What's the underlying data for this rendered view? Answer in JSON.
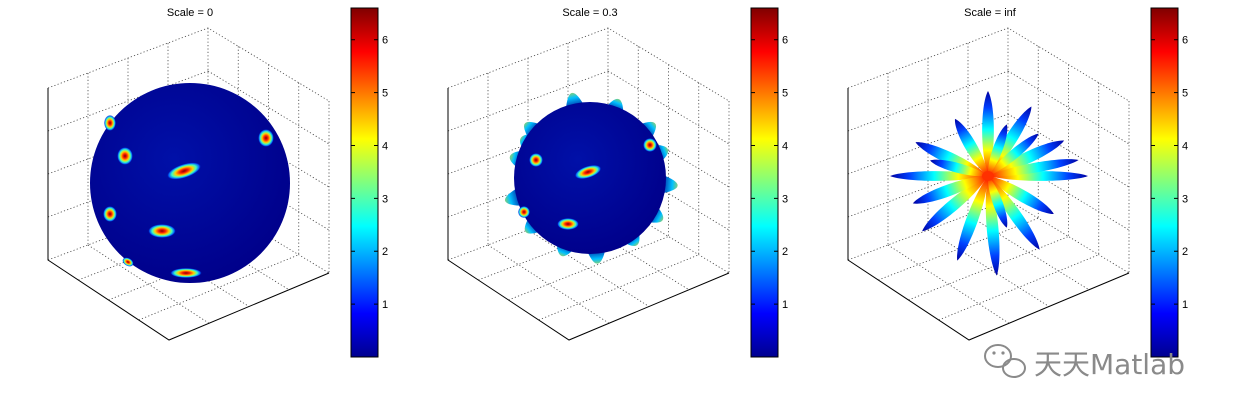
{
  "chart_data": [
    {
      "type": "surface-3d",
      "title": "Scale = 0",
      "shape": "sphere",
      "colorbar": {
        "min": 0,
        "max": 6.6,
        "ticks": [
          1,
          2,
          3,
          4,
          5,
          6
        ],
        "colormap": "jet"
      }
    },
    {
      "type": "surface-3d",
      "title": "Scale = 0.3",
      "shape": "sphere-with-spikes",
      "colorbar": {
        "min": 0,
        "max": 6.6,
        "ticks": [
          1,
          2,
          3,
          4,
          5,
          6
        ],
        "colormap": "jet"
      }
    },
    {
      "type": "surface-3d",
      "title": "Scale = inf",
      "shape": "star-of-lobes",
      "colorbar": {
        "min": 0,
        "max": 6.6,
        "ticks": [
          1,
          2,
          3,
          4,
          5,
          6
        ],
        "colormap": "jet"
      }
    }
  ],
  "watermark": {
    "text": "天天Matlab",
    "icon": "wechat-icon"
  },
  "colors": {
    "low": "#00008f",
    "high": "#800000"
  }
}
